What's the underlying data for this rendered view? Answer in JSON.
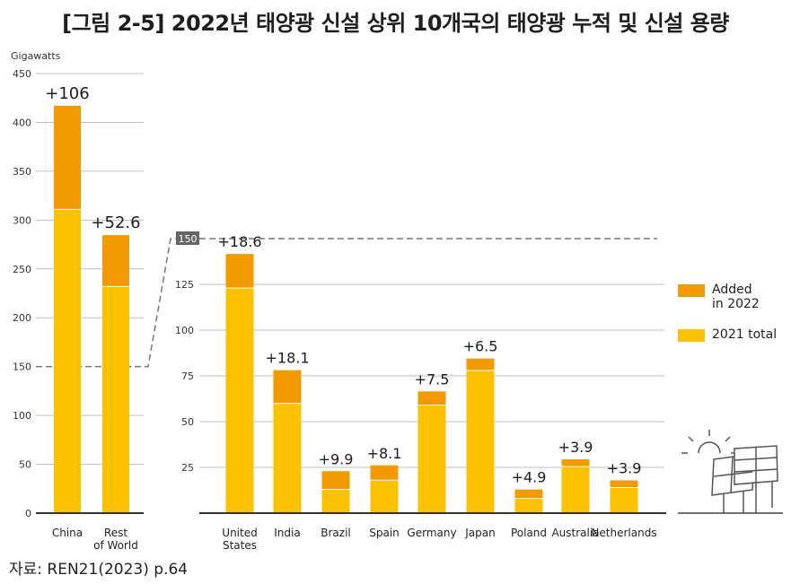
{
  "title": "[그림 2-5] 2022년 태양광 신설 상위 10개국의 태양광 누적 및 신설 용량",
  "source": "자료: REN21(2023) p.64",
  "colors": {
    "added": "#F29A00",
    "base": "#FCC200",
    "grid": "#bfbfbf",
    "axis": "#333333",
    "dashed": "#777777"
  },
  "legend": [
    {
      "label": "Added\nin 2022",
      "color": "#F29A00"
    },
    {
      "label": "2021 total",
      "color": "#FCC200"
    }
  ],
  "chart_data": [
    {
      "type": "bar",
      "stacked": true,
      "ylabel": "Gigawatts",
      "ylim": [
        0,
        450
      ],
      "yticks": [
        0,
        50,
        100,
        150,
        200,
        250,
        300,
        350,
        400,
        450
      ],
      "categories": [
        "China",
        "Rest\nof World"
      ],
      "series": [
        {
          "name": "2021 total",
          "values": [
            311,
            232
          ]
        },
        {
          "name": "Added in 2022",
          "values": [
            106,
            52.6
          ]
        }
      ],
      "data_labels": [
        "+106",
        "+52.6"
      ]
    },
    {
      "type": "bar",
      "stacked": true,
      "ylim": [
        0,
        150
      ],
      "yticks": [
        25,
        50,
        75,
        100,
        125,
        150
      ],
      "categories": [
        "United\nStates",
        "India",
        "Brazil",
        "Spain",
        "Germany",
        "Japan",
        "Poland",
        "Australia",
        "Netherlands"
      ],
      "series": [
        {
          "name": "2021 total",
          "values": [
            123,
            60,
            13,
            18,
            59,
            78,
            8,
            25.5,
            14
          ]
        },
        {
          "name": "Added in 2022",
          "values": [
            18.6,
            18.1,
            9.9,
            8.1,
            7.5,
            6.5,
            4.9,
            3.9,
            3.9
          ]
        }
      ],
      "data_labels": [
        "+18.6",
        "+18.1",
        "+9.9",
        "+8.1",
        "+7.5",
        "+6.5",
        "+4.9",
        "+3.9",
        "+3.9"
      ]
    }
  ]
}
